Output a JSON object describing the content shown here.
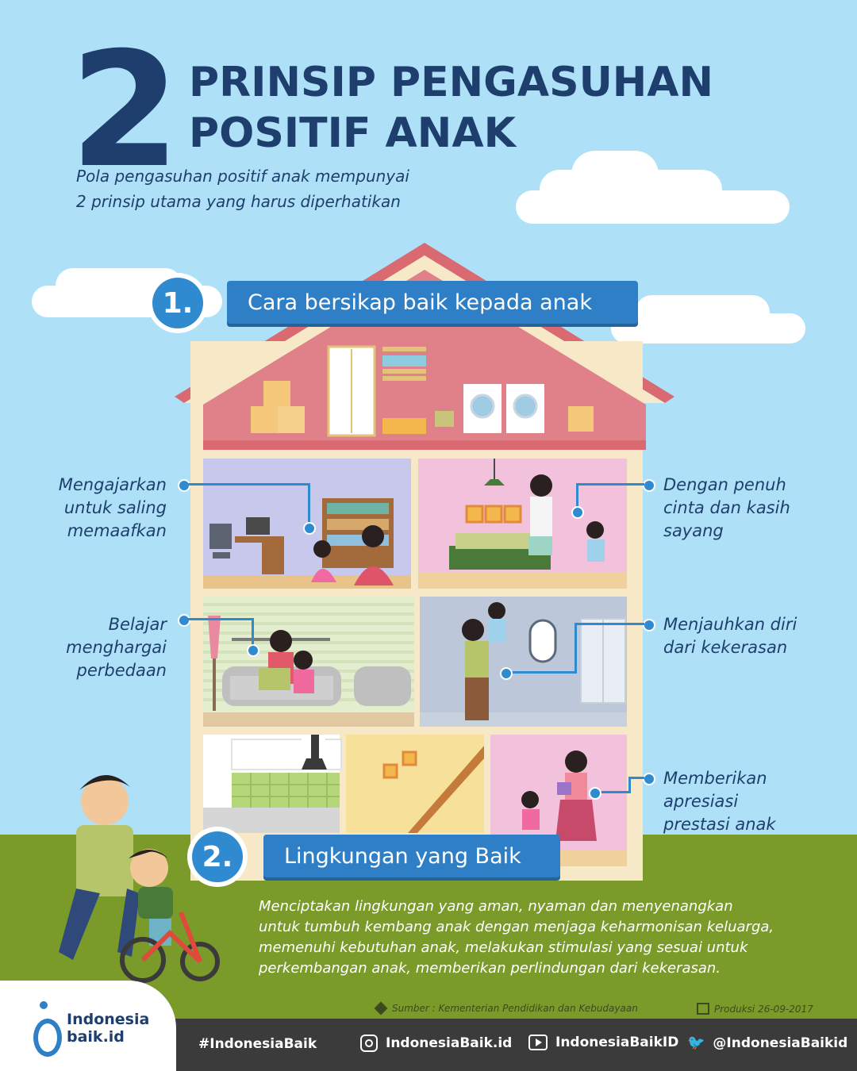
{
  "header": {
    "big_number": "2",
    "title_line1": "PRINSIP PENGASUHAN",
    "title_line2": "POSITIF ANAK",
    "subtitle_line1": "Pola pengasuhan positif anak mempunyai",
    "subtitle_line2": "2 prinsip utama yang harus diperhatikan"
  },
  "principle1": {
    "number": "1.",
    "title": "Cara bersikap baik kepada anak",
    "points": {
      "top_left": [
        "Mengajarkan",
        "untuk saling",
        "memaafkan"
      ],
      "top_right": [
        "Dengan penuh",
        "cinta dan kasih",
        "sayang"
      ],
      "mid_left": [
        "Belajar",
        "menghargai",
        "perbedaan"
      ],
      "mid_right": [
        "Menjauhkan diri",
        "dari kekerasan"
      ],
      "bottom_right": [
        "Memberikan",
        "apresiasi",
        "prestasi anak"
      ]
    }
  },
  "principle2": {
    "number": "2.",
    "title": "Lingkungan yang Baik",
    "description": [
      "Menciptakan lingkungan yang aman, nyaman dan menyenangkan",
      "untuk tumbuh kembang anak dengan menjaga keharmonisan keluarga,",
      "memenuhi kebutuhan anak, melakukan stimulasi yang sesuai untuk",
      "perkembangan anak, memberikan perlindungan dari kekerasan."
    ]
  },
  "source": {
    "text": "Sumber : Kementerian Pendidikan dan Kebudayaan",
    "production": "Produksi 26-09-2017"
  },
  "brand": {
    "logo_line1": "Indonesia",
    "logo_line2": "baik.id"
  },
  "footer": {
    "hashtag": "#IndonesiaBaik",
    "instagram": "IndonesiaBaik.id",
    "youtube": "IndonesiaBaikID",
    "twitter": "@IndonesiaBaikid"
  },
  "colors": {
    "sky": "#aee0f7",
    "grass": "#7a9a2a",
    "navy": "#1e3f6e",
    "accent_blue": "#2f7fc6",
    "roof": "#d96a72",
    "footer": "#3b3b3b"
  }
}
